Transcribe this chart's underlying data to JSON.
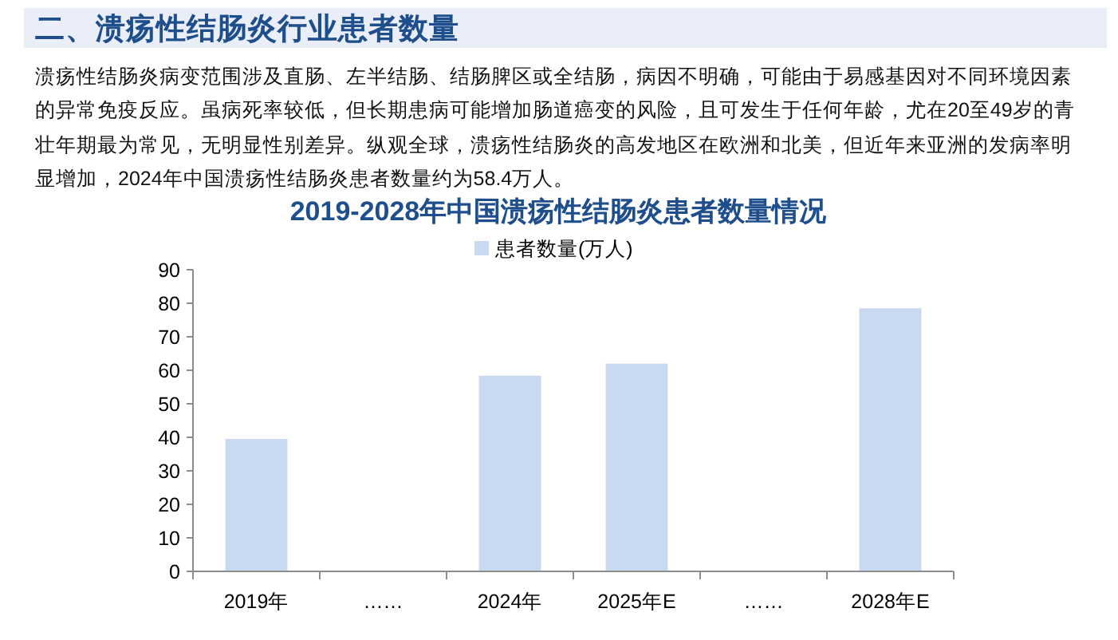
{
  "chart_data": {
    "type": "bar",
    "title": "2019-2028年中国溃疡性结肠炎患者数量情况",
    "annotations": [
      "二、溃疡性结肠炎行业患者数量",
      "溃疡性结肠炎病变范围涉及直肠、左半结肠、结肠脾区或全结肠，病因不明确，可能由于易感基因对不同环境因素的异常免疫反应。虽病死率较低，但长期患病可能增加肠道癌变的风险，且可发生于任何年龄，尤在20至49岁的青壮年期最为常见，无明显性别差异。纵观全球，溃疡性结肠炎的高发地区在欧洲和北美，但近年来亚洲的发病率明显增加，2024年中国溃疡性结肠炎患者数量约为58.4万人。"
    ],
    "categories": [
      "2019年",
      "……",
      "2024年",
      "2025年E",
      "……",
      "2028年E"
    ],
    "series": [
      {
        "name": "患者数量(万人)",
        "color": "#c8d9f0",
        "values": [
          39.5,
          null,
          58.4,
          62,
          null,
          78.5
        ]
      }
    ],
    "ylim": [
      0,
      90
    ],
    "yticks": [
      0,
      10,
      20,
      30,
      40,
      50,
      60,
      70,
      80,
      90
    ],
    "legend": "top"
  }
}
